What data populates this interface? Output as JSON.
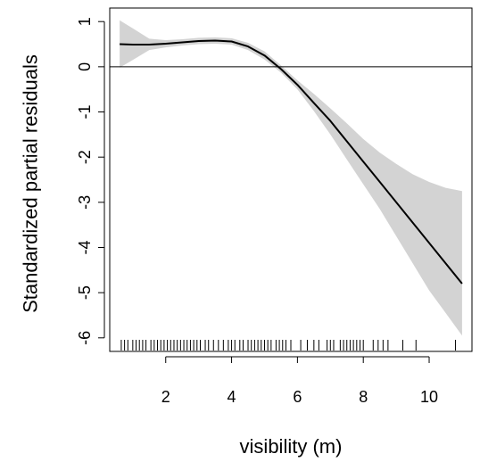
{
  "chart_data": {
    "type": "line",
    "xlabel": "visibility (m)",
    "ylabel": "Standardized partial residuals",
    "xlim": [
      0.3,
      11.3
    ],
    "ylim": [
      -6.3,
      1.3
    ],
    "x_ticks": [
      {
        "value": 2,
        "label": "2"
      },
      {
        "value": 4,
        "label": "4"
      },
      {
        "value": 6,
        "label": "6"
      },
      {
        "value": 8,
        "label": "8"
      },
      {
        "value": 10,
        "label": "10"
      }
    ],
    "y_ticks": [
      {
        "value": 1,
        "label": "1"
      },
      {
        "value": 0,
        "label": "0"
      },
      {
        "value": -1,
        "label": "-1"
      },
      {
        "value": -2,
        "label": "-2"
      },
      {
        "value": -3,
        "label": "-3"
      },
      {
        "value": -4,
        "label": "-4"
      },
      {
        "value": -5,
        "label": "-5"
      },
      {
        "value": -6,
        "label": "-6"
      }
    ],
    "reference_line_y": 0,
    "series": [
      {
        "x": [
          0.6,
          1.0,
          1.5,
          2.0,
          2.5,
          3.0,
          3.5,
          4.0,
          4.5,
          5.0,
          5.5,
          6.0,
          6.5,
          7.0,
          7.5,
          8.0,
          8.5,
          9.0,
          9.5,
          10.0,
          10.5,
          11.0
        ],
        "y": [
          0.5,
          0.49,
          0.49,
          0.51,
          0.54,
          0.57,
          0.58,
          0.56,
          0.45,
          0.25,
          -0.05,
          -0.4,
          -0.8,
          -1.2,
          -1.65,
          -2.1,
          -2.55,
          -3.0,
          -3.45,
          -3.9,
          -4.35,
          -4.8
        ],
        "ci_upper": [
          1.03,
          0.85,
          0.62,
          0.59,
          0.61,
          0.64,
          0.65,
          0.63,
          0.53,
          0.34,
          0.03,
          -0.3,
          -0.6,
          -0.92,
          -1.25,
          -1.6,
          -1.9,
          -2.15,
          -2.38,
          -2.55,
          -2.68,
          -2.75
        ],
        "ci_lower": [
          -0.02,
          0.15,
          0.37,
          0.43,
          0.47,
          0.5,
          0.51,
          0.49,
          0.37,
          0.16,
          -0.13,
          -0.5,
          -0.98,
          -1.5,
          -2.05,
          -2.6,
          -3.15,
          -3.75,
          -4.35,
          -4.95,
          -5.45,
          -5.95
        ]
      }
    ],
    "grid": false,
    "rug_x": [
      0.65,
      0.75,
      0.85,
      1.0,
      1.1,
      1.2,
      1.3,
      1.4,
      1.55,
      1.65,
      1.75,
      1.85,
      1.95,
      2.05,
      2.15,
      2.25,
      2.35,
      2.45,
      2.55,
      2.65,
      2.75,
      2.85,
      2.95,
      3.05,
      3.2,
      3.3,
      3.45,
      3.6,
      3.75,
      3.9,
      4.0,
      4.1,
      4.25,
      4.35,
      4.5,
      4.6,
      4.7,
      4.8,
      4.9,
      5.0,
      5.1,
      5.2,
      5.35,
      5.45,
      5.55,
      5.65,
      5.8,
      6.1,
      6.3,
      6.5,
      6.65,
      6.9,
      7.0,
      7.1,
      7.3,
      7.4,
      7.5,
      7.6,
      7.7,
      7.8,
      7.9,
      8.0,
      8.3,
      8.45,
      8.6,
      8.75,
      9.2,
      9.6,
      10.8
    ],
    "colors": {
      "line": "#000000",
      "band": "#d3d3d3",
      "axis": "#000000",
      "background": "#ffffff"
    }
  }
}
